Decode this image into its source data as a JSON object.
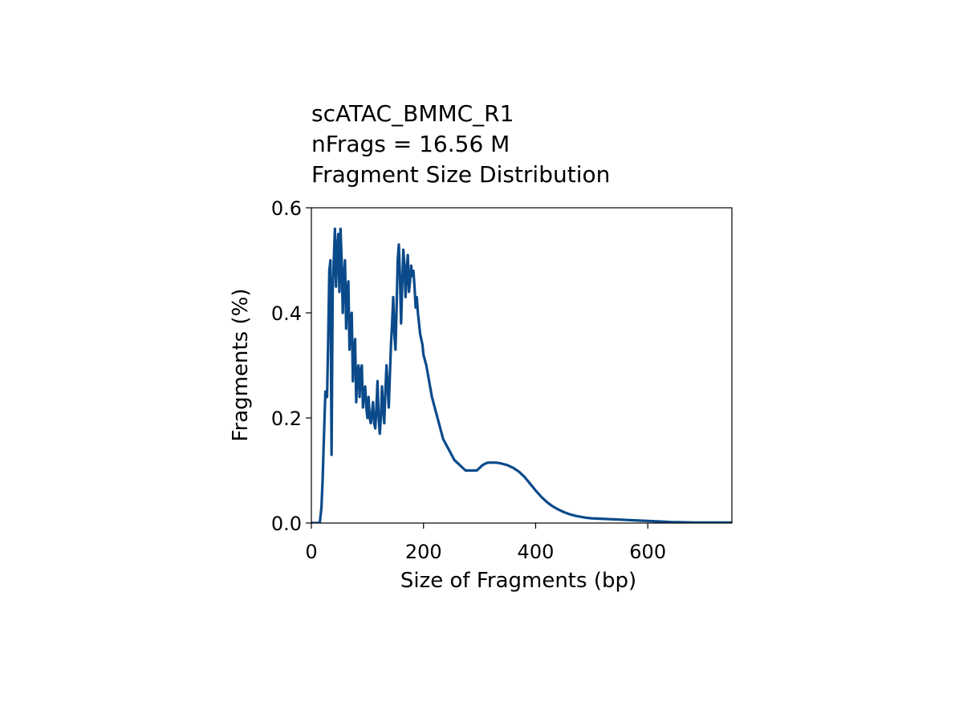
{
  "chart_data": {
    "type": "line",
    "title_lines": [
      "scATAC_BMMC_R1",
      "nFrags = 16.56 M",
      "Fragment Size Distribution"
    ],
    "xlabel": "Size of Fragments (bp)",
    "ylabel": "Fragments (%)",
    "xlim": [
      0,
      750
    ],
    "ylim": [
      0,
      0.6
    ],
    "xticks": [
      0,
      200,
      400,
      600
    ],
    "xtick_labels": [
      "0",
      "200",
      "400",
      "600"
    ],
    "yticks": [
      0.0,
      0.2,
      0.4,
      0.6
    ],
    "ytick_labels": [
      "0.0",
      "0.2",
      "0.4",
      "0.6"
    ],
    "grid": false,
    "series": [
      {
        "color": "#0b4a8a",
        "x": [
          0,
          10,
          15,
          18,
          20,
          22,
          25,
          28,
          30,
          32,
          34,
          36,
          38,
          40,
          42,
          44,
          46,
          48,
          50,
          52,
          54,
          56,
          58,
          60,
          62,
          64,
          66,
          68,
          70,
          72,
          74,
          76,
          78,
          80,
          82,
          84,
          86,
          88,
          90,
          92,
          94,
          96,
          98,
          100,
          102,
          104,
          106,
          108,
          110,
          112,
          114,
          116,
          118,
          120,
          122,
          124,
          126,
          128,
          130,
          132,
          134,
          136,
          138,
          140,
          142,
          144,
          146,
          148,
          150,
          152,
          154,
          156,
          158,
          160,
          162,
          164,
          166,
          168,
          170,
          172,
          174,
          176,
          178,
          180,
          182,
          184,
          186,
          188,
          190,
          192,
          194,
          196,
          198,
          200,
          205,
          210,
          215,
          220,
          225,
          230,
          235,
          240,
          245,
          250,
          255,
          260,
          265,
          270,
          275,
          280,
          285,
          290,
          295,
          300,
          305,
          310,
          315,
          320,
          330,
          340,
          350,
          360,
          370,
          380,
          390,
          400,
          410,
          420,
          430,
          440,
          450,
          460,
          470,
          480,
          490,
          500,
          520,
          540,
          560,
          580,
          600,
          620,
          640,
          660,
          680,
          700,
          720,
          750
        ],
        "y": [
          0.0,
          0.0,
          0.0,
          0.03,
          0.08,
          0.15,
          0.25,
          0.24,
          0.35,
          0.48,
          0.5,
          0.13,
          0.44,
          0.5,
          0.56,
          0.45,
          0.52,
          0.55,
          0.44,
          0.56,
          0.5,
          0.4,
          0.47,
          0.5,
          0.37,
          0.44,
          0.46,
          0.33,
          0.38,
          0.4,
          0.27,
          0.33,
          0.35,
          0.23,
          0.29,
          0.3,
          0.24,
          0.29,
          0.3,
          0.22,
          0.25,
          0.26,
          0.22,
          0.2,
          0.24,
          0.2,
          0.19,
          0.21,
          0.23,
          0.19,
          0.18,
          0.22,
          0.27,
          0.2,
          0.17,
          0.2,
          0.26,
          0.22,
          0.19,
          0.25,
          0.3,
          0.26,
          0.22,
          0.28,
          0.34,
          0.38,
          0.43,
          0.36,
          0.33,
          0.41,
          0.5,
          0.53,
          0.47,
          0.38,
          0.45,
          0.52,
          0.49,
          0.43,
          0.48,
          0.51,
          0.44,
          0.46,
          0.49,
          0.47,
          0.48,
          0.45,
          0.41,
          0.43,
          0.4,
          0.38,
          0.36,
          0.35,
          0.34,
          0.32,
          0.3,
          0.27,
          0.24,
          0.22,
          0.2,
          0.18,
          0.16,
          0.15,
          0.14,
          0.13,
          0.12,
          0.115,
          0.11,
          0.105,
          0.1,
          0.1,
          0.1,
          0.1,
          0.1,
          0.105,
          0.11,
          0.113,
          0.115,
          0.115,
          0.115,
          0.113,
          0.11,
          0.105,
          0.098,
          0.088,
          0.075,
          0.062,
          0.05,
          0.04,
          0.032,
          0.026,
          0.021,
          0.017,
          0.014,
          0.012,
          0.01,
          0.009,
          0.008,
          0.007,
          0.006,
          0.005,
          0.004,
          0.003,
          0.002,
          0.0015,
          0.001,
          0.001,
          0.001,
          0.001
        ]
      }
    ]
  }
}
